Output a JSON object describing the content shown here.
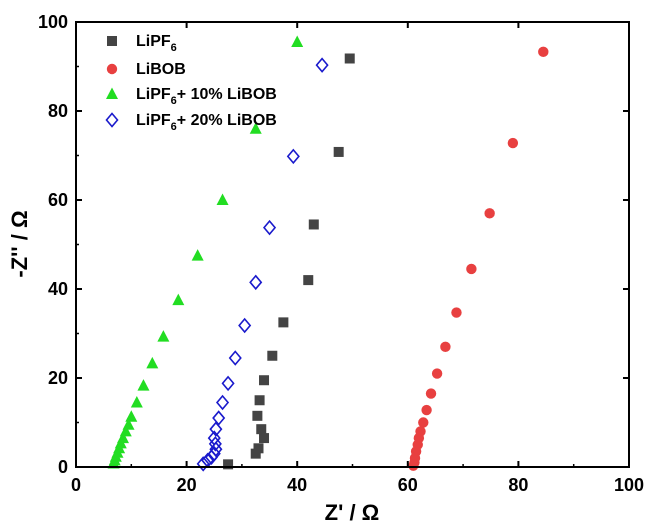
{
  "chart_data": {
    "type": "scatter",
    "xlabel": "Z' / Ω",
    "ylabel": "-Z'' / Ω",
    "xlim": [
      0,
      100
    ],
    "ylim": [
      0,
      100
    ],
    "xticks": [
      0,
      20,
      40,
      60,
      80,
      100
    ],
    "yticks": [
      0,
      20,
      40,
      60,
      80,
      100
    ],
    "legend_position": "top-left",
    "series": [
      {
        "name": "LiPF6",
        "label_main": "LiPF",
        "label_sub": "6",
        "label_rest": "",
        "marker": "square",
        "color": "#444444",
        "points": [
          [
            27.5,
            0.6
          ],
          [
            32.5,
            3.0
          ],
          [
            33.0,
            4.2
          ],
          [
            34.0,
            6.5
          ],
          [
            33.5,
            8.5
          ],
          [
            32.8,
            11.5
          ],
          [
            33.2,
            15.0
          ],
          [
            34.0,
            19.5
          ],
          [
            35.5,
            25.0
          ],
          [
            37.5,
            32.5
          ],
          [
            42.0,
            42.0
          ],
          [
            43.0,
            54.5
          ],
          [
            47.5,
            70.8
          ],
          [
            49.5,
            91.8
          ]
        ]
      },
      {
        "name": "LiBOB",
        "label_main": "LiBOB",
        "label_sub": "",
        "label_rest": "",
        "marker": "circle",
        "color": "#e84040",
        "points": [
          [
            61.0,
            0.3
          ],
          [
            61.2,
            1.0
          ],
          [
            61.3,
            2.0
          ],
          [
            61.5,
            3.5
          ],
          [
            61.8,
            5.0
          ],
          [
            62.0,
            6.5
          ],
          [
            62.3,
            8.0
          ],
          [
            62.8,
            10.0
          ],
          [
            63.4,
            12.8
          ],
          [
            64.2,
            16.5
          ],
          [
            65.3,
            21.0
          ],
          [
            66.8,
            27.0
          ],
          [
            68.8,
            34.7
          ],
          [
            71.5,
            44.5
          ],
          [
            74.8,
            57.0
          ],
          [
            79.0,
            72.8
          ],
          [
            84.5,
            93.3
          ]
        ]
      },
      {
        "name": "LiPF6+ 10% LiBOB",
        "label_main": "LiPF",
        "label_sub": "6",
        "label_rest": "+ 10%  LiBOB",
        "marker": "triangle",
        "color": "#22dd22",
        "points": [
          [
            6.8,
            0.8
          ],
          [
            7.0,
            1.5
          ],
          [
            7.2,
            2.3
          ],
          [
            7.5,
            3.2
          ],
          [
            7.8,
            4.2
          ],
          [
            8.1,
            5.3
          ],
          [
            8.5,
            6.5
          ],
          [
            9.0,
            8.0
          ],
          [
            9.5,
            9.5
          ],
          [
            10.0,
            11.3
          ],
          [
            11.0,
            14.5
          ],
          [
            12.2,
            18.3
          ],
          [
            13.8,
            23.3
          ],
          [
            15.8,
            29.3
          ],
          [
            18.5,
            37.5
          ],
          [
            22.0,
            47.5
          ],
          [
            26.5,
            60.0
          ],
          [
            32.5,
            76.0
          ],
          [
            40.0,
            95.5
          ]
        ]
      },
      {
        "name": "LiPF6+ 20% LiBOB",
        "label_main": "LiPF",
        "label_sub": "6",
        "label_rest": "+ 20%  LiBOB",
        "marker": "diamond",
        "color": "#1a1acc",
        "points": [
          [
            23.0,
            0.7
          ],
          [
            23.8,
            1.5
          ],
          [
            24.5,
            2.2
          ],
          [
            25.0,
            3.0
          ],
          [
            25.3,
            4.0
          ],
          [
            25.2,
            5.2
          ],
          [
            25.0,
            6.5
          ],
          [
            25.3,
            8.5
          ],
          [
            25.8,
            11.0
          ],
          [
            26.5,
            14.5
          ],
          [
            27.5,
            18.8
          ],
          [
            28.8,
            24.5
          ],
          [
            30.5,
            31.8
          ],
          [
            32.5,
            41.5
          ],
          [
            35.0,
            53.8
          ],
          [
            39.3,
            69.8
          ],
          [
            44.5,
            90.3
          ]
        ]
      }
    ]
  }
}
